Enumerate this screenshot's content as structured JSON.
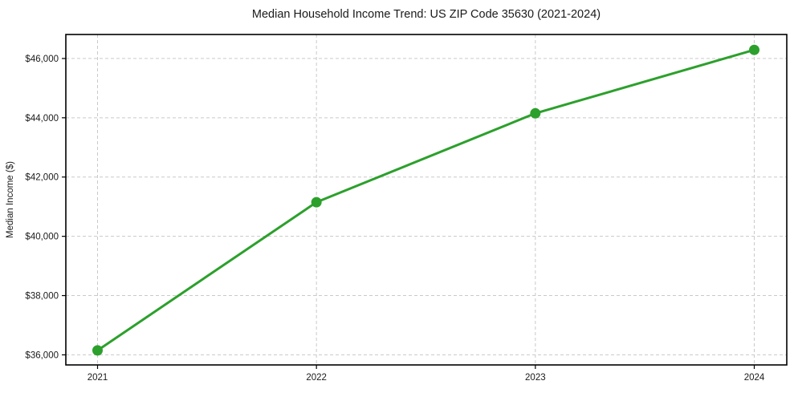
{
  "chart_data": {
    "type": "line",
    "title": "Median Household Income Trend: US ZIP Code 35630 (2021-2024)",
    "xlabel": "",
    "ylabel": "Median Income ($)",
    "x": [
      2021,
      2022,
      2023,
      2024
    ],
    "series": [
      {
        "name": "Median Household Income",
        "values": [
          36150,
          41150,
          44150,
          46290
        ]
      }
    ],
    "xtick_labels": [
      "2021",
      "2022",
      "2023",
      "2024"
    ],
    "yticks": [
      36000,
      38000,
      40000,
      42000,
      44000,
      46000
    ],
    "ytick_labels": [
      "$36,000",
      "$38,000",
      "$40,000",
      "$42,000",
      "$44,000",
      "$46,000"
    ],
    "ylim": [
      35660,
      46810
    ],
    "grid": true,
    "legend_position": "none",
    "colors": {
      "line": "#2ca02c",
      "marker": "#2ca02c",
      "gridline": "#c9c9c9",
      "spine": "#000000",
      "text": "#1a1a1a",
      "background": "#ffffff"
    }
  }
}
